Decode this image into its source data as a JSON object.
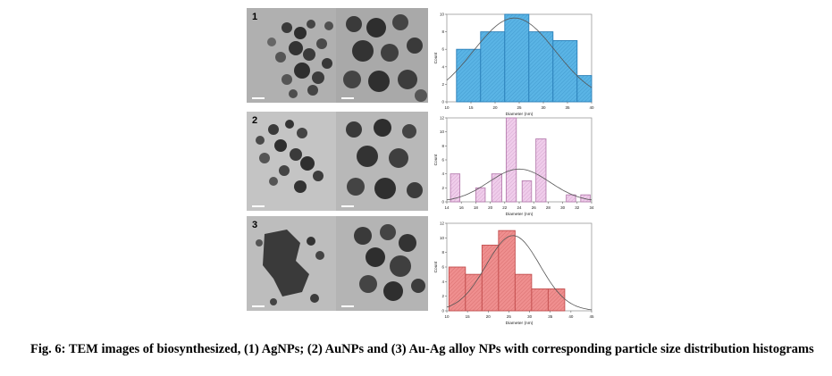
{
  "figure": {
    "caption": "Fig. 6: TEM images of biosynthesized, (1) AgNPs; (2) AuNPs and (3) Au-Ag alloy NPs with corresponding particle size distribution histograms"
  },
  "panels": [
    {
      "number": "1"
    },
    {
      "number": "2"
    },
    {
      "number": "3"
    }
  ],
  "colors": {
    "agnps_fill": "#5ab4e5",
    "agnps_stroke": "#2a7fb8",
    "aunps_fill": "#f0cdeb",
    "aunps_stroke": "#b77fb0",
    "alloy_fill": "#ef8f8f",
    "alloy_stroke": "#c24d4d",
    "tem_background": "#a8a8a8",
    "particles": "#3a3a3a"
  },
  "chart_data": [
    {
      "type": "bar",
      "xlabel": "Diameter (nm)",
      "ylabel": "Count",
      "x_bins": [
        [
          12,
          17
        ],
        [
          17,
          22
        ],
        [
          22,
          27
        ],
        [
          27,
          32
        ],
        [
          32,
          37
        ],
        [
          37,
          40
        ]
      ],
      "values": [
        6,
        8,
        10,
        8,
        7,
        3
      ],
      "xlim": [
        10,
        40
      ],
      "ylim": [
        0,
        10
      ],
      "xticks": [
        10,
        15,
        20,
        25,
        30,
        35,
        40
      ],
      "yticks": [
        0,
        2,
        4,
        6,
        8,
        10
      ],
      "fit_curve": "normal",
      "fit_mean": 24,
      "fit_sd": 8.5,
      "grid": false
    },
    {
      "type": "bar",
      "xlabel": "Diameter (nm)",
      "ylabel": "Count",
      "x_bins": [
        [
          14.5,
          15.8
        ],
        [
          18,
          19.3
        ],
        [
          20.2,
          21.6
        ],
        [
          22.2,
          23.6
        ],
        [
          24.4,
          25.7
        ],
        [
          26.3,
          27.7
        ],
        [
          30.5,
          31.8
        ],
        [
          32.5,
          33.8
        ]
      ],
      "values": [
        4,
        2,
        4,
        12,
        3,
        9,
        1,
        1
      ],
      "xlim": [
        14,
        34
      ],
      "ylim": [
        0,
        12
      ],
      "xticks": [
        14,
        16,
        18,
        20,
        22,
        24,
        26,
        28,
        30,
        32,
        34
      ],
      "yticks": [
        0,
        2,
        4,
        6,
        8,
        10,
        12
      ],
      "fit_curve": "normal",
      "fit_mean": 24,
      "fit_sd": 4.2,
      "grid": false
    },
    {
      "type": "bar",
      "xlabel": "Diameter (nm)",
      "ylabel": "Count",
      "x_bins": [
        [
          10.5,
          14.5
        ],
        [
          14.5,
          18.5
        ],
        [
          18.5,
          22.5
        ],
        [
          22.5,
          26.5
        ],
        [
          26.5,
          30.5
        ],
        [
          30.5,
          34.5
        ],
        [
          34.5,
          38.5
        ]
      ],
      "values": [
        6,
        5,
        9,
        11,
        5,
        3,
        3
      ],
      "xlim": [
        10,
        45
      ],
      "ylim": [
        0,
        12
      ],
      "xticks": [
        10,
        15,
        20,
        25,
        30,
        35,
        40,
        45
      ],
      "yticks": [
        0,
        2,
        4,
        6,
        8,
        10,
        12
      ],
      "fit_curve": "normal",
      "fit_mean": 26,
      "fit_sd": 6.5,
      "grid": false
    }
  ]
}
